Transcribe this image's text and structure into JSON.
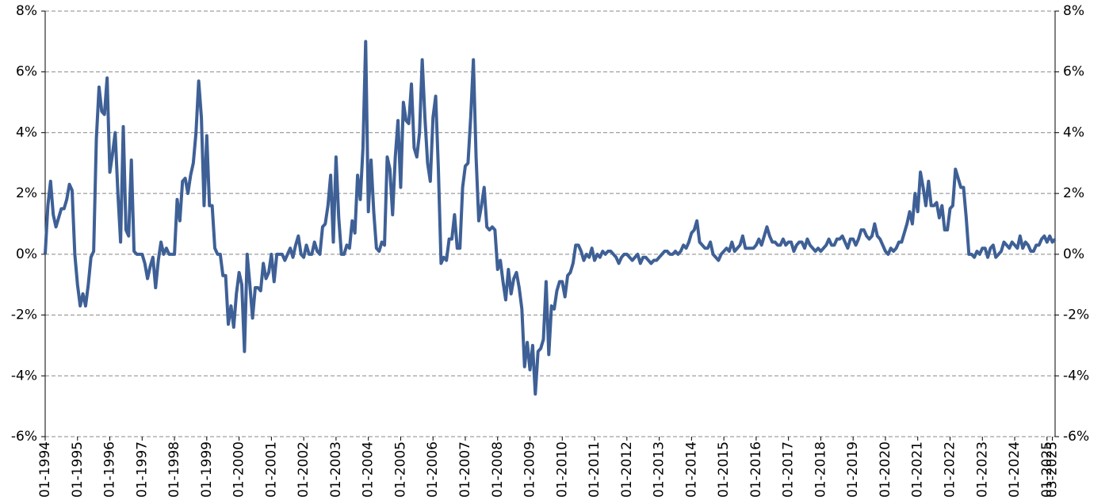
{
  "chart_data": {
    "type": "line",
    "categories": [
      "01-1994",
      null,
      null,
      null,
      null,
      null,
      null,
      null,
      null,
      null,
      null,
      null,
      "01-1995",
      null,
      null,
      null,
      null,
      null,
      null,
      null,
      null,
      null,
      null,
      null,
      "01-1996",
      null,
      null,
      null,
      null,
      null,
      null,
      null,
      null,
      null,
      null,
      null,
      "01-1997",
      null,
      null,
      null,
      null,
      null,
      null,
      null,
      null,
      null,
      null,
      null,
      "01-1998",
      null,
      null,
      null,
      null,
      null,
      null,
      null,
      null,
      null,
      null,
      null,
      "01-1999",
      null,
      null,
      null,
      null,
      null,
      null,
      null,
      null,
      null,
      null,
      null,
      "01-2000",
      null,
      null,
      null,
      null,
      null,
      null,
      null,
      null,
      null,
      null,
      null,
      "01-2001",
      null,
      null,
      null,
      null,
      null,
      null,
      null,
      null,
      null,
      null,
      null,
      "01-2002",
      null,
      null,
      null,
      null,
      null,
      null,
      null,
      null,
      null,
      null,
      null,
      "01-2003",
      null,
      null,
      null,
      null,
      null,
      null,
      null,
      null,
      null,
      null,
      null,
      "01-2004",
      null,
      null,
      null,
      null,
      null,
      null,
      null,
      null,
      null,
      null,
      null,
      "01-2005",
      null,
      null,
      null,
      null,
      null,
      null,
      null,
      null,
      null,
      null,
      null,
      "01-2006",
      null,
      null,
      null,
      null,
      null,
      null,
      null,
      null,
      null,
      null,
      null,
      "01-2007",
      null,
      null,
      null,
      null,
      null,
      null,
      null,
      null,
      null,
      null,
      null,
      "01-2008",
      null,
      null,
      null,
      null,
      null,
      null,
      null,
      null,
      null,
      null,
      null,
      "01-2009",
      null,
      null,
      null,
      null,
      null,
      null,
      null,
      null,
      null,
      null,
      null,
      "01-2010",
      null,
      null,
      null,
      null,
      null,
      null,
      null,
      null,
      null,
      null,
      null,
      "01-2011",
      null,
      null,
      null,
      null,
      null,
      null,
      null,
      null,
      null,
      null,
      null,
      "01-2012",
      null,
      null,
      null,
      null,
      null,
      null,
      null,
      null,
      null,
      null,
      null,
      "01-2013",
      null,
      null,
      null,
      null,
      null,
      null,
      null,
      null,
      null,
      null,
      null,
      "01-2014",
      null,
      null,
      null,
      null,
      null,
      null,
      null,
      null,
      null,
      null,
      null,
      "01-2015",
      null,
      null,
      null,
      null,
      null,
      null,
      null,
      null,
      null,
      null,
      null,
      "01-2016",
      null,
      null,
      null,
      null,
      null,
      null,
      null,
      null,
      null,
      null,
      null,
      "01-2017",
      null,
      null,
      null,
      null,
      null,
      null,
      null,
      null,
      null,
      null,
      null,
      "01-2018",
      null,
      null,
      null,
      null,
      null,
      null,
      null,
      null,
      null,
      null,
      null,
      "01-2019",
      null,
      null,
      null,
      null,
      null,
      null,
      null,
      null,
      null,
      null,
      null,
      "01-2020",
      null,
      null,
      null,
      null,
      null,
      null,
      null,
      null,
      null,
      null,
      null,
      "01-2021",
      null,
      null,
      null,
      null,
      null,
      null,
      null,
      null,
      null,
      null,
      null,
      "01-2022",
      null,
      null,
      null,
      null,
      null,
      null,
      null,
      null,
      null,
      null,
      null,
      "01-2023",
      null,
      null,
      null,
      null,
      null,
      null,
      null,
      null,
      null,
      null,
      null,
      "01-2024",
      null,
      null,
      null,
      null,
      null,
      null,
      null,
      null,
      null,
      null,
      null,
      "01-2025",
      null,
      "03-2025",
      null
    ],
    "values": [
      0,
      1.6,
      2.4,
      1.3,
      0.9,
      1.2,
      1.5,
      1.5,
      1.8,
      2.3,
      2.1,
      0.0,
      -1.0,
      -1.7,
      -1.3,
      -1.7,
      -1.0,
      -0.1,
      0.1,
      3.8,
      5.5,
      4.7,
      4.6,
      5.8,
      2.7,
      3.3,
      4.0,
      2.0,
      0.4,
      4.2,
      0.8,
      0.6,
      3.1,
      0.1,
      0.0,
      0.0,
      0.0,
      -0.3,
      -0.8,
      -0.4,
      -0.1,
      -1.1,
      -0.2,
      0.4,
      0.0,
      0.2,
      0.0,
      0.0,
      0.0,
      1.8,
      1.1,
      2.4,
      2.5,
      2.0,
      2.6,
      3.0,
      4.0,
      5.7,
      4.5,
      1.6,
      3.9,
      1.6,
      1.6,
      0.2,
      0.0,
      0.0,
      -0.7,
      -0.7,
      -2.3,
      -1.7,
      -2.4,
      -1.3,
      -0.6,
      -1.0,
      -3.2,
      0.0,
      -1.0,
      -2.1,
      -1.1,
      -1.1,
      -1.2,
      -0.3,
      -0.8,
      -0.6,
      0.0,
      -0.9,
      0.0,
      0.0,
      0.0,
      -0.2,
      0.0,
      0.2,
      -0.1,
      0.3,
      0.6,
      0.0,
      -0.1,
      0.3,
      0.0,
      0.0,
      0.4,
      0.1,
      0.0,
      0.9,
      1.0,
      1.6,
      2.6,
      0.4,
      3.2,
      1.2,
      0.0,
      0.0,
      0.3,
      0.2,
      1.1,
      0.7,
      2.6,
      1.8,
      3.5,
      7.0,
      1.4,
      3.1,
      1.4,
      0.2,
      0.1,
      0.4,
      0.3,
      3.2,
      2.8,
      1.3,
      3.2,
      4.4,
      2.2,
      5.0,
      4.4,
      4.3,
      5.6,
      3.5,
      3.2,
      4.0,
      6.4,
      4.5,
      3.0,
      2.4,
      4.5,
      5.2,
      2.8,
      -0.3,
      -0.1,
      -0.2,
      0.5,
      0.5,
      1.3,
      0.2,
      0.2,
      2.2,
      2.9,
      3.0,
      4.5,
      6.4,
      3.2,
      1.1,
      1.6,
      2.2,
      0.9,
      0.8,
      0.9,
      0.8,
      -0.5,
      -0.2,
      -0.9,
      -1.5,
      -0.5,
      -1.3,
      -0.8,
      -0.6,
      -1.1,
      -1.8,
      -3.7,
      -2.9,
      -3.8,
      -3.0,
      -4.6,
      -3.2,
      -3.1,
      -2.8,
      -0.9,
      -3.3,
      -1.7,
      -1.8,
      -1.2,
      -0.9,
      -0.9,
      -1.4,
      -0.7,
      -0.6,
      -0.3,
      0.3,
      0.3,
      0.1,
      -0.2,
      0.0,
      -0.1,
      0.2,
      -0.2,
      0.0,
      -0.1,
      0.1,
      0.0,
      0.1,
      0.1,
      0.0,
      -0.1,
      -0.3,
      -0.1,
      0.0,
      0.0,
      -0.1,
      -0.2,
      -0.1,
      0.0,
      -0.3,
      -0.1,
      -0.1,
      -0.2,
      -0.3,
      -0.2,
      -0.2,
      -0.1,
      0.0,
      0.1,
      0.1,
      0.0,
      0.0,
      0.1,
      0.0,
      0.1,
      0.3,
      0.2,
      0.4,
      0.7,
      0.8,
      1.1,
      0.4,
      0.3,
      0.2,
      0.2,
      0.4,
      0.0,
      -0.1,
      -0.2,
      0.0,
      0.1,
      0.2,
      0.1,
      0.4,
      0.1,
      0.2,
      0.3,
      0.6,
      0.2,
      0.2,
      0.2,
      0.2,
      0.3,
      0.5,
      0.3,
      0.6,
      0.9,
      0.6,
      0.4,
      0.4,
      0.3,
      0.3,
      0.5,
      0.3,
      0.4,
      0.4,
      0.1,
      0.3,
      0.4,
      0.4,
      0.2,
      0.5,
      0.3,
      0.2,
      0.1,
      0.2,
      0.1,
      0.2,
      0.3,
      0.5,
      0.3,
      0.3,
      0.5,
      0.5,
      0.6,
      0.4,
      0.2,
      0.5,
      0.5,
      0.3,
      0.5,
      0.8,
      0.8,
      0.6,
      0.5,
      0.6,
      1.0,
      0.6,
      0.5,
      0.3,
      0.1,
      0.0,
      0.2,
      0.1,
      0.2,
      0.4,
      0.4,
      0.7,
      1.0,
      1.4,
      1.0,
      2.0,
      1.4,
      2.7,
      2.2,
      1.6,
      2.4,
      1.6,
      1.6,
      1.7,
      1.2,
      1.6,
      0.8,
      0.8,
      1.5,
      1.6,
      2.8,
      2.5,
      2.2,
      2.2,
      1.2,
      0.0,
      0.0,
      -0.1,
      0.1,
      0.0,
      0.2,
      0.2,
      -0.1,
      0.2,
      0.3,
      -0.1,
      0.0,
      0.1,
      0.4,
      0.3,
      0.2,
      0.4,
      0.3,
      0.2,
      0.6,
      0.2,
      0.4,
      0.3,
      0.1,
      0.1,
      0.3,
      0.3,
      0.5,
      0.6,
      0.4,
      0.6,
      0.4,
      0.5
    ],
    "color": "#3e6096",
    "ylim": [
      -6,
      8
    ],
    "yticks": [
      {
        "value": -6,
        "label": "-6%"
      },
      {
        "value": -4,
        "label": "-4%"
      },
      {
        "value": -2,
        "label": "-2%"
      },
      {
        "value": 0,
        "label": "0%"
      },
      {
        "value": 2,
        "label": "2%"
      },
      {
        "value": 4,
        "label": "4%"
      },
      {
        "value": 6,
        "label": "6%"
      },
      {
        "value": 8,
        "label": "8%"
      }
    ],
    "grid": true
  }
}
